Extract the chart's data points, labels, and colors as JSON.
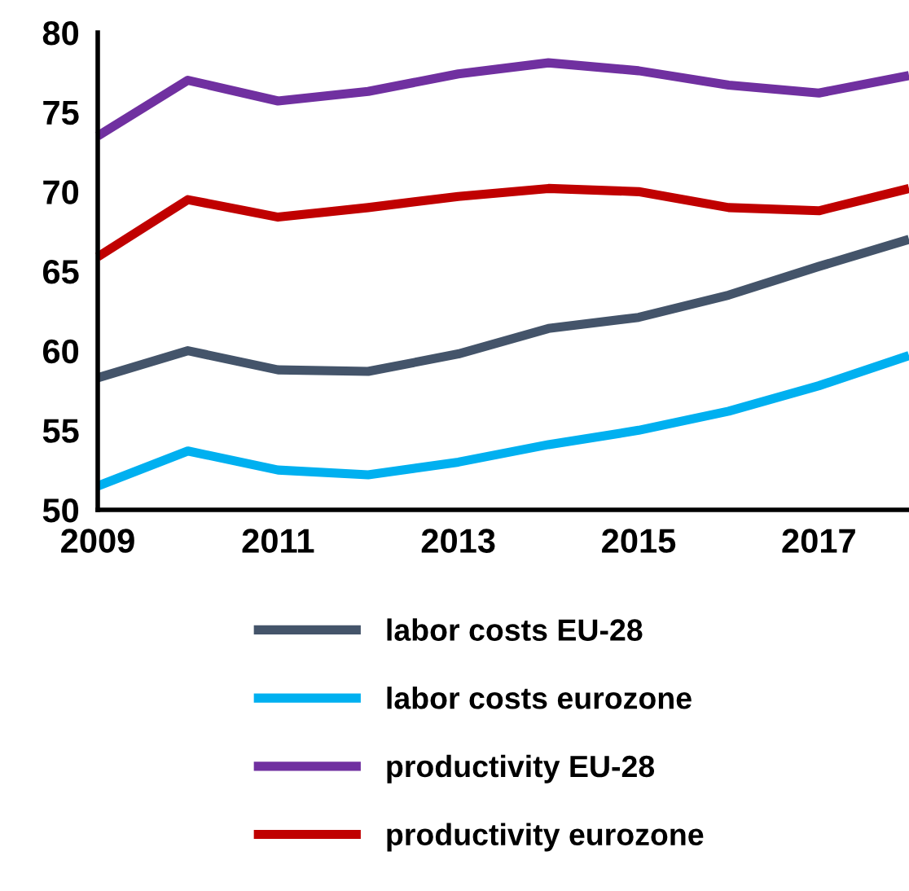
{
  "chart_data": {
    "type": "line",
    "x": [
      2009,
      2010,
      2011,
      2012,
      2013,
      2014,
      2015,
      2016,
      2017,
      2018
    ],
    "series": [
      {
        "name": "labor costs EU-28",
        "color": "#44546a",
        "values": [
          58.3,
          60.0,
          58.8,
          58.7,
          59.8,
          61.4,
          62.1,
          63.5,
          65.3,
          67.0
        ]
      },
      {
        "name": "labor costs eurozone",
        "color": "#00b0f0",
        "values": [
          51.5,
          53.7,
          52.5,
          52.2,
          53.0,
          54.1,
          55.0,
          56.2,
          57.8,
          59.7
        ]
      },
      {
        "name": "productivity EU-28",
        "color": "#7030a0",
        "values": [
          73.5,
          77.0,
          75.7,
          76.3,
          77.4,
          78.1,
          77.6,
          76.7,
          76.2,
          77.3
        ]
      },
      {
        "name": "productivity eurozone",
        "color": "#c00000",
        "values": [
          65.9,
          69.5,
          68.4,
          69.0,
          69.7,
          70.2,
          70.0,
          69.0,
          68.8,
          70.2
        ]
      }
    ],
    "xlim": [
      2009,
      2018
    ],
    "xticks": [
      2009,
      2011,
      2013,
      2015,
      2017
    ],
    "ylim": [
      50,
      80
    ],
    "yticks": [
      50,
      55,
      60,
      65,
      70,
      75,
      80
    ],
    "grid": false,
    "legend": "bottom",
    "marker": "none",
    "line_style": "solid"
  }
}
